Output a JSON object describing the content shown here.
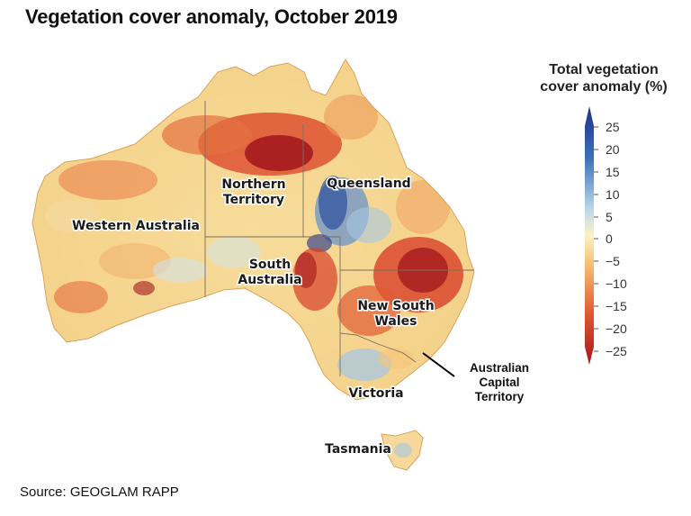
{
  "title": "Vegetation cover anomaly, October 2019",
  "source": "Source: GEOGLAM RAPP",
  "legend": {
    "title_line1": "Total vegetation",
    "title_line2": "cover anomaly (%)",
    "ticks": [
      "25",
      "20",
      "15",
      "10",
      "5",
      "0",
      "−5",
      "−10",
      "−15",
      "−20",
      "−25"
    ],
    "colors": {
      "pos25": "#1d2f8a",
      "pos15": "#3d70b8",
      "pos5": "#bcd9ea",
      "zero": "#fbf1c4",
      "neg5": "#f6c57a",
      "neg15": "#e25a32",
      "neg25": "#a1151c"
    }
  },
  "states": {
    "western_australia": "Western Australia",
    "northern_territory_1": "Northern",
    "northern_territory_2": "Territory",
    "queensland": "Queensland",
    "south_australia_1": "South",
    "south_australia_2": "Australia",
    "new_south_wales_1": "New South",
    "new_south_wales_2": "Wales",
    "victoria": "Victoria",
    "tasmania": "Tasmania",
    "act_1": "Australian",
    "act_2": "Capital",
    "act_3": "Territory"
  }
}
